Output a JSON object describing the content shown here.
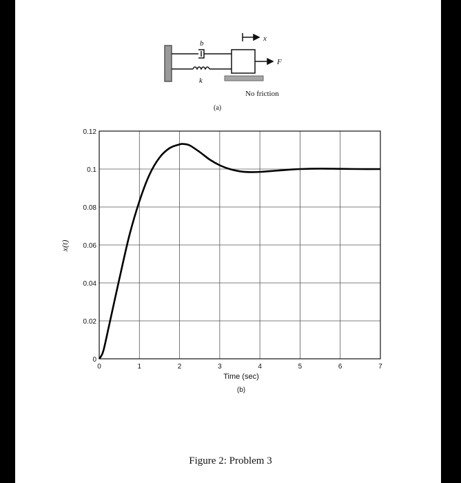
{
  "diagram": {
    "label_b": "b",
    "label_k": "k",
    "label_x": "x",
    "label_F": "F",
    "friction_label": "No friction",
    "sublabel": "(a)"
  },
  "chart_data": {
    "type": "line",
    "xlabel": "Time (sec)",
    "ylabel": "x(t)",
    "sublabel": "(b)",
    "xlim": [
      0,
      7
    ],
    "ylim": [
      0,
      0.12
    ],
    "xticks": [
      "0",
      "1",
      "2",
      "3",
      "4",
      "5",
      "6",
      "7"
    ],
    "yticks": [
      "0",
      "0.02",
      "0.04",
      "0.06",
      "0.08",
      "0.1",
      "0.12"
    ],
    "grid": true,
    "series": [
      {
        "name": "",
        "color": "#000000",
        "x": [
          0,
          0.1,
          0.25,
          0.5,
          0.75,
          1.0,
          1.25,
          1.5,
          1.75,
          2.0,
          2.1,
          2.25,
          2.5,
          2.75,
          3.0,
          3.25,
          3.5,
          3.75,
          4.0,
          4.25,
          4.5,
          4.75,
          5.0,
          5.5,
          6.0,
          6.5,
          7.0
        ],
        "y": [
          0,
          0.004,
          0.018,
          0.042,
          0.065,
          0.083,
          0.097,
          0.106,
          0.111,
          0.113,
          0.1132,
          0.1125,
          0.109,
          0.105,
          0.102,
          0.1,
          0.0988,
          0.0984,
          0.0985,
          0.0989,
          0.0993,
          0.0997,
          0.1,
          0.1002,
          0.1001,
          0.1,
          0.1
        ]
      }
    ]
  },
  "figure": {
    "caption": "Figure 2: Problem 3"
  }
}
